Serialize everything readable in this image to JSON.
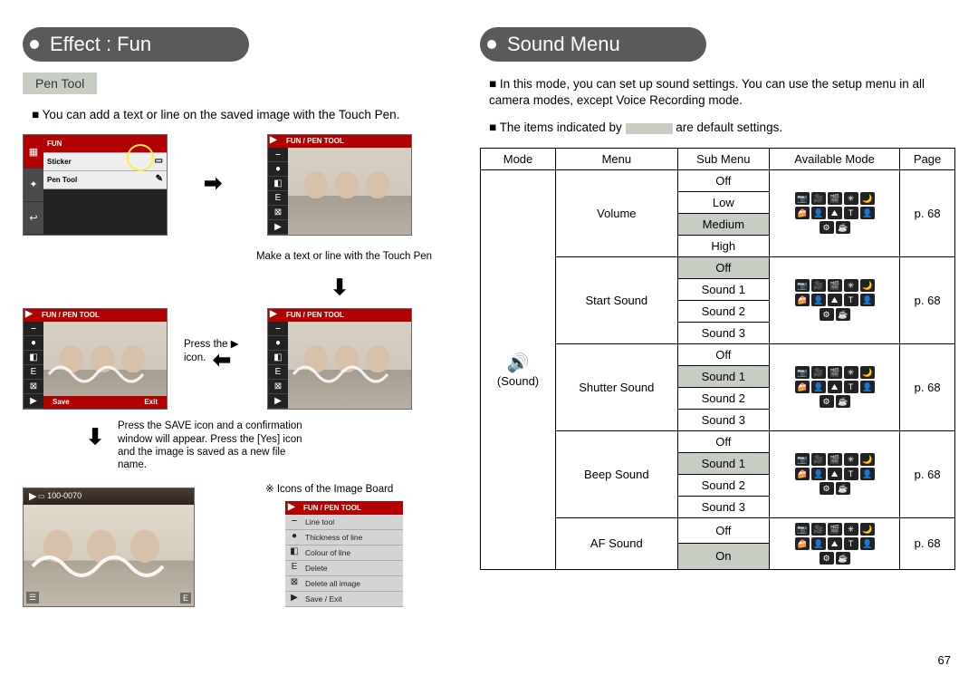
{
  "page_number": "67",
  "left": {
    "header": "Effect : Fun",
    "subhead": "Pen Tool",
    "bullet": "You can add a text or line on the saved image with the Touch Pen.",
    "fun_menu": {
      "title": "FUN",
      "items": [
        "Sticker",
        "Pen Tool"
      ]
    },
    "pentool_title": "FUN  /  PEN TOOL",
    "save_label": "Save",
    "exit_label": "Exit",
    "caption_make": "Make a text or line with the Touch Pen",
    "caption_press": "Press the ▶ icon.",
    "caption_saveflow": "Press the SAVE icon and a confirmation window will appear. Press the [Yes] icon and the image is saved as a new file name.",
    "caption_icons": "※  Icons of the Image Board",
    "result_file": "100-0070",
    "icon_legend_title": "FUN  /  PEN TOOL",
    "icon_legend": [
      {
        "icon": "⎯",
        "label": "Line tool"
      },
      {
        "icon": "●",
        "label": "Thickness of line"
      },
      {
        "icon": "◧",
        "label": "Colour of line"
      },
      {
        "icon": "E",
        "label": "Delete"
      },
      {
        "icon": "⊠",
        "label": "Delete all image"
      },
      {
        "icon": "▶",
        "label": "Save / Exit"
      }
    ]
  },
  "right": {
    "header": "Sound Menu",
    "bullets": [
      "In this mode, you can set up sound settings. You can use the setup menu in all camera modes, except Voice Recording mode.",
      "The items indicated by            are default settings."
    ],
    "table": {
      "head": [
        "Mode",
        "Menu",
        "Sub Menu",
        "Available Mode",
        "Page"
      ],
      "mode_label": "(Sound)",
      "mode_icons_row": [
        "📷",
        "🎥",
        "🎬",
        "✳",
        "🌙",
        "🍰",
        "👤",
        "⛰",
        "T",
        "👤",
        "⚙",
        "☕"
      ],
      "groups": [
        {
          "menu": "Volume",
          "subs": [
            "Off",
            "Low",
            "Medium",
            "High"
          ],
          "default": "Medium",
          "page": "p. 68"
        },
        {
          "menu": "Start Sound",
          "subs": [
            "Off",
            "Sound 1",
            "Sound 2",
            "Sound 3"
          ],
          "default": "Off",
          "page": "p. 68"
        },
        {
          "menu": "Shutter Sound",
          "subs": [
            "Off",
            "Sound 1",
            "Sound 2",
            "Sound 3"
          ],
          "default": "Sound 1",
          "page": "p. 68"
        },
        {
          "menu": "Beep Sound",
          "subs": [
            "Off",
            "Sound 1",
            "Sound 2",
            "Sound 3"
          ],
          "default": "Sound 1",
          "page": "p. 68"
        },
        {
          "menu": "AF Sound",
          "subs": [
            "Off",
            "On"
          ],
          "default": "On",
          "page": "p. 68"
        }
      ]
    }
  },
  "colors": {
    "header_bg": "#5a5a5a",
    "subhead_bg": "#c8cdc4",
    "accent_red": "#b30000"
  }
}
